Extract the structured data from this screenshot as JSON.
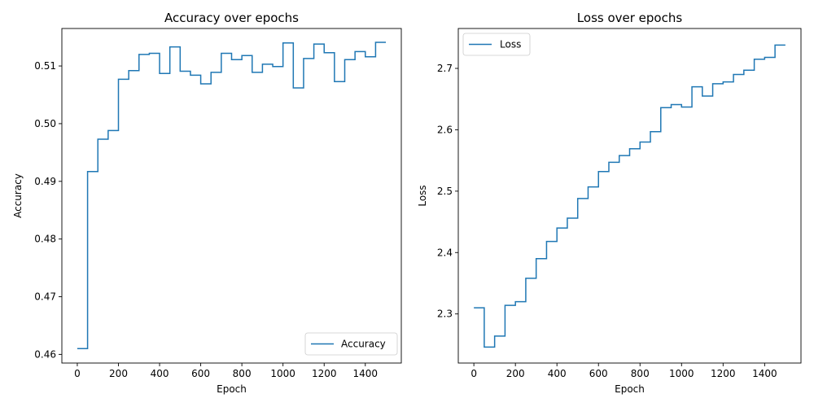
{
  "chart_data": [
    {
      "type": "line",
      "title": "Accuracy over epochs",
      "xlabel": "Epoch",
      "ylabel": "Accuracy",
      "xlim": [
        -75,
        1575
      ],
      "ylim": [
        0.4585,
        0.5165
      ],
      "xticks": [
        0,
        200,
        400,
        600,
        800,
        1000,
        1200,
        1400
      ],
      "xtick_labels": [
        "0",
        "200",
        "400",
        "600",
        "800",
        "1000",
        "1200",
        "1400"
      ],
      "yticks": [
        0.46,
        0.47,
        0.48,
        0.49,
        0.5,
        0.51
      ],
      "ytick_labels": [
        "0.46",
        "0.47",
        "0.48",
        "0.49",
        "0.50",
        "0.51"
      ],
      "grid": false,
      "legend": "lower-right",
      "line_style": "step",
      "series": [
        {
          "name": "Accuracy",
          "color": "#1f77b4",
          "x": [
            0,
            50,
            100,
            150,
            200,
            250,
            300,
            350,
            400,
            450,
            500,
            550,
            600,
            650,
            700,
            750,
            800,
            850,
            900,
            950,
            1000,
            1050,
            1100,
            1150,
            1200,
            1250,
            1300,
            1350,
            1400,
            1450,
            1500
          ],
          "values": [
            0.461,
            0.4917,
            0.4973,
            0.4988,
            0.5077,
            0.5092,
            0.512,
            0.5122,
            0.5087,
            0.5133,
            0.5091,
            0.5084,
            0.5069,
            0.5089,
            0.5122,
            0.5111,
            0.5118,
            0.5089,
            0.5103,
            0.5099,
            0.514,
            0.5062,
            0.5113,
            0.5138,
            0.5123,
            0.5073,
            0.5111,
            0.5125,
            0.5116,
            0.5141,
            0.5141
          ]
        }
      ]
    },
    {
      "type": "line",
      "title": "Loss over epochs",
      "xlabel": "Epoch",
      "ylabel": "Loss",
      "xlim": [
        -75,
        1575
      ],
      "ylim": [
        2.22,
        2.765
      ],
      "xticks": [
        0,
        200,
        400,
        600,
        800,
        1000,
        1200,
        1400
      ],
      "xtick_labels": [
        "0",
        "200",
        "400",
        "600",
        "800",
        "1000",
        "1200",
        "1400"
      ],
      "yticks": [
        2.3,
        2.4,
        2.5,
        2.6,
        2.7
      ],
      "ytick_labels": [
        "2.3",
        "2.4",
        "2.5",
        "2.6",
        "2.7"
      ],
      "grid": false,
      "legend": "upper-left",
      "line_style": "step",
      "series": [
        {
          "name": "Loss",
          "color": "#1f77b4",
          "x": [
            0,
            50,
            100,
            150,
            200,
            250,
            300,
            350,
            400,
            450,
            500,
            550,
            600,
            650,
            700,
            750,
            800,
            850,
            900,
            950,
            1000,
            1050,
            1100,
            1150,
            1200,
            1250,
            1300,
            1350,
            1400,
            1450,
            1500
          ],
          "values": [
            2.31,
            2.246,
            2.264,
            2.314,
            2.32,
            2.358,
            2.39,
            2.418,
            2.44,
            2.456,
            2.488,
            2.507,
            2.532,
            2.547,
            2.558,
            2.569,
            2.58,
            2.597,
            2.636,
            2.641,
            2.637,
            2.67,
            2.655,
            2.675,
            2.678,
            2.69,
            2.697,
            2.715,
            2.718,
            2.738,
            2.738
          ]
        }
      ]
    }
  ]
}
